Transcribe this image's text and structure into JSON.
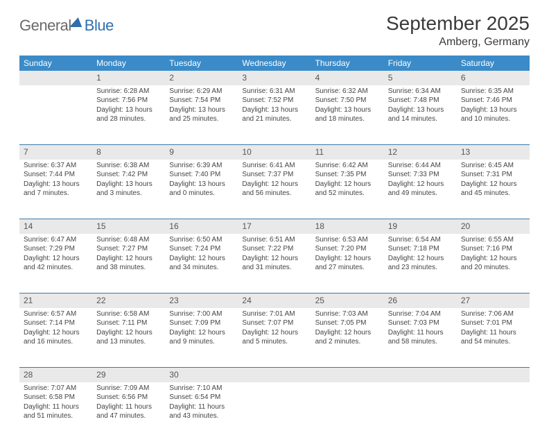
{
  "logo": {
    "part1": "General",
    "part2": "Blue"
  },
  "title": "September 2025",
  "location": "Amberg, Germany",
  "colors": {
    "header_bg": "#3b8bc8",
    "header_text": "#ffffff",
    "daynum_bg": "#e9e9e9",
    "row_border": "#3b78a8",
    "text": "#444444",
    "title_text": "#3a3a3a",
    "logo_gray": "#6a6a6a",
    "logo_blue": "#2f6fae",
    "page_bg": "#ffffff"
  },
  "typography": {
    "title_fontsize": 28,
    "location_fontsize": 16,
    "weekday_fontsize": 12,
    "daynum_fontsize": 12,
    "cell_fontsize": 10
  },
  "layout": {
    "columns": 7,
    "rows": 5,
    "start_column": 1
  },
  "weekdays": [
    "Sunday",
    "Monday",
    "Tuesday",
    "Wednesday",
    "Thursday",
    "Friday",
    "Saturday"
  ],
  "days": [
    {
      "n": 1,
      "sunrise": "6:28 AM",
      "sunset": "7:56 PM",
      "daylight": "13 hours and 28 minutes."
    },
    {
      "n": 2,
      "sunrise": "6:29 AM",
      "sunset": "7:54 PM",
      "daylight": "13 hours and 25 minutes."
    },
    {
      "n": 3,
      "sunrise": "6:31 AM",
      "sunset": "7:52 PM",
      "daylight": "13 hours and 21 minutes."
    },
    {
      "n": 4,
      "sunrise": "6:32 AM",
      "sunset": "7:50 PM",
      "daylight": "13 hours and 18 minutes."
    },
    {
      "n": 5,
      "sunrise": "6:34 AM",
      "sunset": "7:48 PM",
      "daylight": "13 hours and 14 minutes."
    },
    {
      "n": 6,
      "sunrise": "6:35 AM",
      "sunset": "7:46 PM",
      "daylight": "13 hours and 10 minutes."
    },
    {
      "n": 7,
      "sunrise": "6:37 AM",
      "sunset": "7:44 PM",
      "daylight": "13 hours and 7 minutes."
    },
    {
      "n": 8,
      "sunrise": "6:38 AM",
      "sunset": "7:42 PM",
      "daylight": "13 hours and 3 minutes."
    },
    {
      "n": 9,
      "sunrise": "6:39 AM",
      "sunset": "7:40 PM",
      "daylight": "13 hours and 0 minutes."
    },
    {
      "n": 10,
      "sunrise": "6:41 AM",
      "sunset": "7:37 PM",
      "daylight": "12 hours and 56 minutes."
    },
    {
      "n": 11,
      "sunrise": "6:42 AM",
      "sunset": "7:35 PM",
      "daylight": "12 hours and 52 minutes."
    },
    {
      "n": 12,
      "sunrise": "6:44 AM",
      "sunset": "7:33 PM",
      "daylight": "12 hours and 49 minutes."
    },
    {
      "n": 13,
      "sunrise": "6:45 AM",
      "sunset": "7:31 PM",
      "daylight": "12 hours and 45 minutes."
    },
    {
      "n": 14,
      "sunrise": "6:47 AM",
      "sunset": "7:29 PM",
      "daylight": "12 hours and 42 minutes."
    },
    {
      "n": 15,
      "sunrise": "6:48 AM",
      "sunset": "7:27 PM",
      "daylight": "12 hours and 38 minutes."
    },
    {
      "n": 16,
      "sunrise": "6:50 AM",
      "sunset": "7:24 PM",
      "daylight": "12 hours and 34 minutes."
    },
    {
      "n": 17,
      "sunrise": "6:51 AM",
      "sunset": "7:22 PM",
      "daylight": "12 hours and 31 minutes."
    },
    {
      "n": 18,
      "sunrise": "6:53 AM",
      "sunset": "7:20 PM",
      "daylight": "12 hours and 27 minutes."
    },
    {
      "n": 19,
      "sunrise": "6:54 AM",
      "sunset": "7:18 PM",
      "daylight": "12 hours and 23 minutes."
    },
    {
      "n": 20,
      "sunrise": "6:55 AM",
      "sunset": "7:16 PM",
      "daylight": "12 hours and 20 minutes."
    },
    {
      "n": 21,
      "sunrise": "6:57 AM",
      "sunset": "7:14 PM",
      "daylight": "12 hours and 16 minutes."
    },
    {
      "n": 22,
      "sunrise": "6:58 AM",
      "sunset": "7:11 PM",
      "daylight": "12 hours and 13 minutes."
    },
    {
      "n": 23,
      "sunrise": "7:00 AM",
      "sunset": "7:09 PM",
      "daylight": "12 hours and 9 minutes."
    },
    {
      "n": 24,
      "sunrise": "7:01 AM",
      "sunset": "7:07 PM",
      "daylight": "12 hours and 5 minutes."
    },
    {
      "n": 25,
      "sunrise": "7:03 AM",
      "sunset": "7:05 PM",
      "daylight": "12 hours and 2 minutes."
    },
    {
      "n": 26,
      "sunrise": "7:04 AM",
      "sunset": "7:03 PM",
      "daylight": "11 hours and 58 minutes."
    },
    {
      "n": 27,
      "sunrise": "7:06 AM",
      "sunset": "7:01 PM",
      "daylight": "11 hours and 54 minutes."
    },
    {
      "n": 28,
      "sunrise": "7:07 AM",
      "sunset": "6:58 PM",
      "daylight": "11 hours and 51 minutes."
    },
    {
      "n": 29,
      "sunrise": "7:09 AM",
      "sunset": "6:56 PM",
      "daylight": "11 hours and 47 minutes."
    },
    {
      "n": 30,
      "sunrise": "7:10 AM",
      "sunset": "6:54 PM",
      "daylight": "11 hours and 43 minutes."
    }
  ],
  "labels": {
    "sunrise": "Sunrise:",
    "sunset": "Sunset:",
    "daylight": "Daylight:"
  }
}
